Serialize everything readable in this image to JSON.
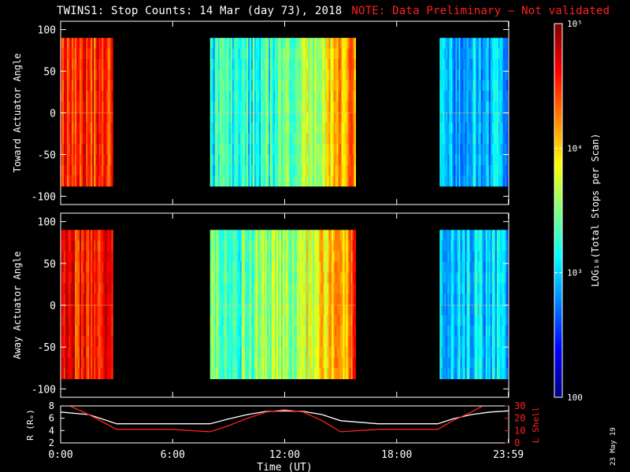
{
  "title": {
    "main": "TWINS1: Stop Counts: 14 Mar (day  73), 2018",
    "note": "NOTE: Data Preliminary – Not validated"
  },
  "stamp": "23 May 19",
  "colors": {
    "background": "#000000",
    "axis": "#ffffff",
    "note": "#ff2020",
    "lshell": "#ff2020",
    "radius": "#ffffff"
  },
  "chart_data": [
    {
      "type": "heatmap",
      "panel": "toward",
      "ylabel": "Toward Actuator Angle",
      "ylim": [
        -110,
        110
      ],
      "yticks": [
        -100,
        -50,
        0,
        50,
        100
      ],
      "xlim": [
        0,
        24
      ],
      "angle_range": [
        -88,
        90
      ],
      "segments": [
        {
          "start": 0.0,
          "end": 2.8,
          "base": 0.82
        },
        {
          "start": 8.0,
          "end": 15.8,
          "base": 0.38,
          "trend_end": 0.78
        },
        {
          "start": 20.3,
          "end": 23.95,
          "base": 0.3
        }
      ]
    },
    {
      "type": "heatmap",
      "panel": "away",
      "ylabel": "Away Actuator Angle",
      "ylim": [
        -110,
        110
      ],
      "yticks": [
        -100,
        -50,
        0,
        50,
        100
      ],
      "xlim": [
        0,
        24
      ],
      "angle_range": [
        -88,
        90
      ],
      "segments": [
        {
          "start": 0.0,
          "end": 2.8,
          "base": 0.85
        },
        {
          "start": 8.0,
          "end": 15.8,
          "base": 0.45,
          "trend_end": 0.8
        },
        {
          "start": 20.3,
          "end": 23.95,
          "base": 0.32
        }
      ]
    },
    {
      "type": "line",
      "panel": "ephemeris",
      "xlabel": "Time (UT)",
      "ylabel_left": "R (Rₑ)",
      "ylabel_right": "L Shell",
      "xticks": [
        "0:00",
        "6:00",
        "12:00",
        "18:00",
        "23:59"
      ],
      "xtick_values": [
        0,
        6,
        12,
        18,
        23.98
      ],
      "ylim_left": [
        2,
        8
      ],
      "yticks_left": [
        2,
        4,
        6,
        8
      ],
      "ylim_right": [
        0,
        30
      ],
      "yticks_right": [
        0,
        10,
        20,
        30
      ],
      "series": [
        {
          "axis": "left",
          "color": "#ffffff",
          "x": [
            0,
            1.5,
            2.5,
            3,
            6,
            8,
            9,
            10,
            11,
            12,
            13,
            14,
            15,
            17,
            19,
            20.2,
            21,
            22,
            23,
            23.98
          ],
          "y": [
            7.0,
            6.6,
            5.6,
            5.1,
            5.1,
            5.1,
            5.9,
            6.6,
            7.1,
            7.2,
            7.1,
            6.6,
            5.6,
            5.1,
            5.1,
            5.1,
            5.9,
            6.6,
            7.0,
            7.2
          ]
        },
        {
          "axis": "right",
          "color": "#ff2020",
          "x": [
            0.5,
            1.5,
            2.5,
            3,
            6,
            8,
            9,
            10,
            11,
            12,
            13,
            14,
            15,
            17,
            19,
            20.2,
            21,
            22,
            22.6
          ],
          "y": [
            30,
            23,
            15,
            11,
            11,
            9,
            14,
            20,
            25,
            27,
            25,
            18,
            9,
            11,
            11,
            11,
            18,
            25,
            30
          ]
        }
      ]
    }
  ],
  "colorbar": {
    "label": "LOG₁₀(Total Stops per Scan)",
    "ticks": [
      {
        "value": 100000,
        "label": "10⁵"
      },
      {
        "value": 10000,
        "label": "10⁴"
      },
      {
        "value": 1000,
        "label": "10³"
      },
      {
        "value": 100,
        "label": "100"
      }
    ],
    "range": [
      100,
      100000
    ],
    "scale": "log"
  }
}
